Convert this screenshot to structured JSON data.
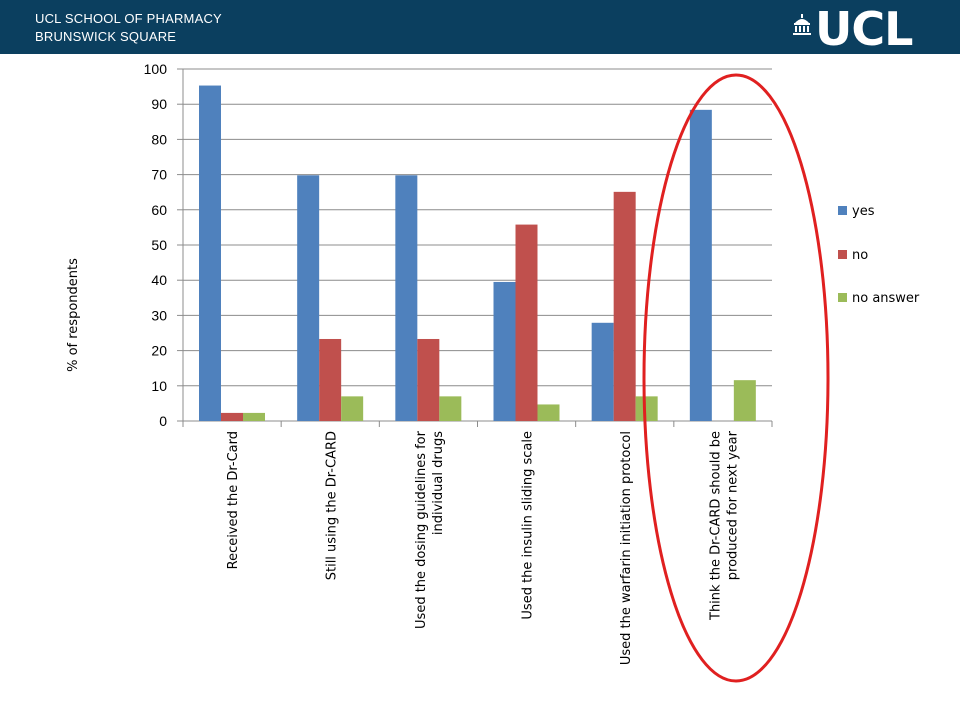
{
  "header": {
    "line1": "UCL SCHOOL OF PHARMACY",
    "line2": "BRUNSWICK SQUARE",
    "logo": "UCL",
    "logo_icon": "portico-icon",
    "bg_color": "#0b3f5f"
  },
  "chart_data": {
    "type": "bar",
    "ylabel": "% of respondents",
    "ylim": [
      0,
      100
    ],
    "yticks": [
      0,
      10,
      20,
      30,
      40,
      50,
      60,
      70,
      80,
      90,
      100
    ],
    "grid": true,
    "legend_position": "right",
    "categories": [
      [
        "Received the Dr-Card"
      ],
      [
        "Still using the Dr-CARD"
      ],
      [
        "Used the dosing guidelines for",
        "individual drugs"
      ],
      [
        "Used the insulin sliding scale"
      ],
      [
        "Used the warfarin initiation protocol"
      ],
      [
        "Think the Dr-CARD should be",
        "produced for next year"
      ]
    ],
    "series": [
      {
        "name": "yes",
        "color": "#4f81bd",
        "values": [
          95.3,
          69.8,
          69.8,
          39.5,
          27.9,
          88.4
        ]
      },
      {
        "name": "no",
        "color": "#c0504d",
        "values": [
          2.3,
          23.3,
          23.3,
          55.8,
          65.1,
          0
        ]
      },
      {
        "name": "no answer",
        "color": "#9bbb59",
        "values": [
          2.3,
          7.0,
          7.0,
          4.7,
          7.0,
          11.6
        ]
      }
    ],
    "annotation": {
      "shape": "ellipse",
      "color": "#e02020",
      "highlight_category_index": 5
    }
  }
}
